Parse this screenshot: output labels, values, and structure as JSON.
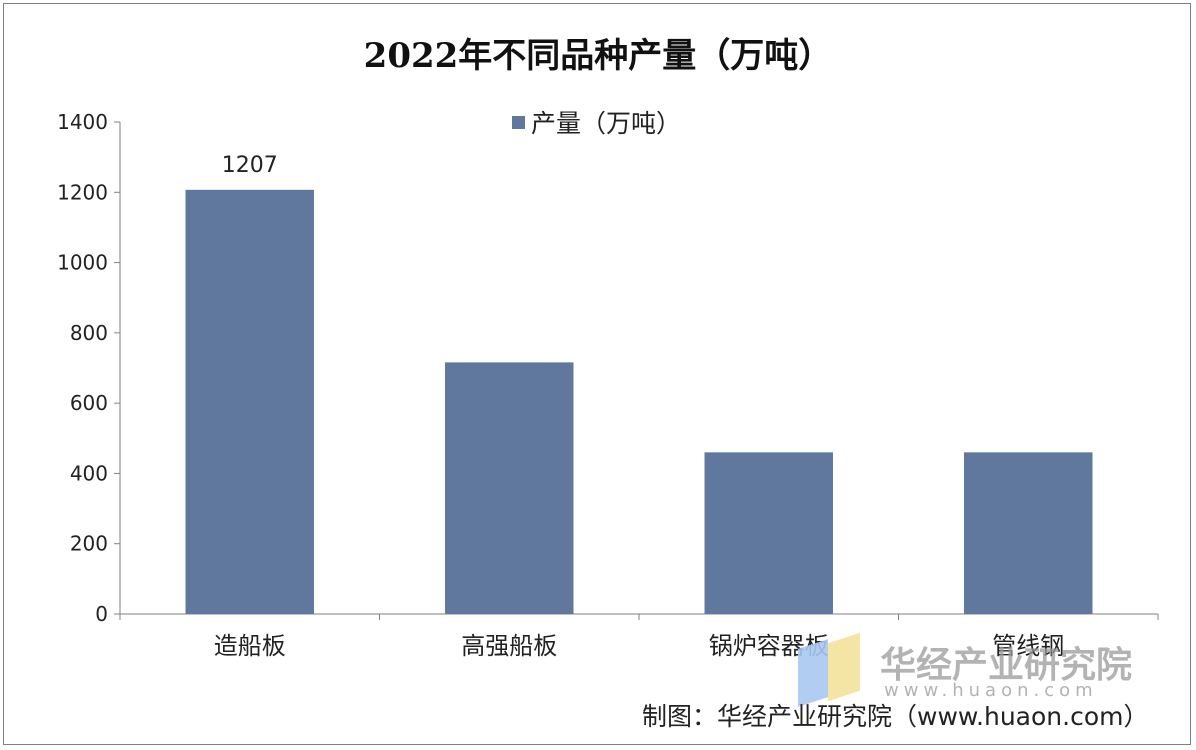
{
  "chart_data": {
    "type": "bar",
    "title": "2022年不同品种产量（万吨）",
    "categories": [
      "造船板",
      "高强船板",
      "锅炉容器板",
      "管线钢"
    ],
    "series": [
      {
        "name": "产量（万吨）",
        "values": [
          1207,
          716,
          460,
          460
        ],
        "color": "#60789e"
      }
    ],
    "data_labels": [
      "1207",
      "",
      "",
      ""
    ],
    "ylim": [
      0,
      1400
    ],
    "yticks": [
      0,
      200,
      400,
      600,
      800,
      1000,
      1200,
      1400
    ],
    "xlabel": "",
    "ylabel": "",
    "grid": false,
    "legend_position": "top-center"
  },
  "source_note": "制图：华经产业研究院（www.huaon.com）",
  "watermark": {
    "name": "华经产业研究院",
    "url": "www.huaon.com"
  }
}
